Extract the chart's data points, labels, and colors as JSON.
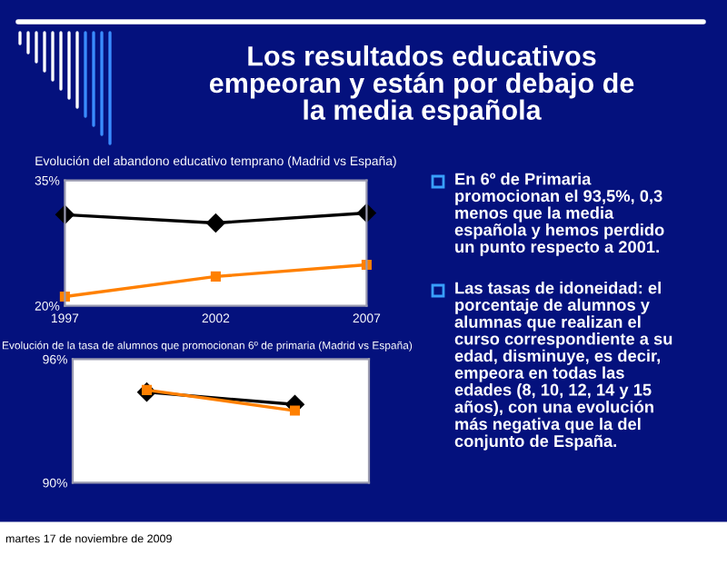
{
  "chart_data": [
    {
      "type": "line",
      "title": "Evolución del abandono educativo temprano (Madrid vs España)",
      "x": [
        1997,
        2002,
        2007
      ],
      "xlim": [
        1997,
        2007
      ],
      "xticks": [
        1997,
        2002,
        2007
      ],
      "ylim": [
        20,
        35
      ],
      "yticks": [
        {
          "value": 35,
          "label": "35%"
        },
        {
          "value": 20,
          "label": "20%"
        }
      ],
      "grid": false,
      "legend": false,
      "series": [
        {
          "color": "#000000",
          "marker": "diamond",
          "values": [
            30.9,
            29.9,
            31.1
          ]
        },
        {
          "color": "#ff8000",
          "marker": "square",
          "values": [
            21.1,
            23.5,
            24.9
          ]
        }
      ],
      "annotations": [
        "Los resultados educativos\nempeoran y están por debajo de\nla media española",
        "En 6º de Primaria\npromocionan el 93,5%, 0,3\nmenos que la media\nespañola y hemos perdido\nun punto respecto a 2001.",
        "Las tasas de idoneidad: el\nporcentaje de alumnos y\nalumnas que realizan el\ncurso correspondiente a su\nedad, disminuye, es decir,\nempeora en todas las\nedades (8, 10, 12, 14 y 15\naños), con una evolución\nmás negativa que la del\nconjunto de España.",
        "martes 17 de noviembre de 2009"
      ]
    },
    {
      "type": "line",
      "title": "Evolución de la tasa de alumnos que promocionan 6º de primaria (Madrid vs España)",
      "categories": [
        null,
        null
      ],
      "ylim": [
        90,
        96
      ],
      "yticks": [
        {
          "value": 96,
          "label": "96%"
        },
        {
          "value": 90,
          "label": "90%"
        }
      ],
      "grid": false,
      "legend": false,
      "tick_labels": "y",
      "series": [
        {
          "color": "#000000",
          "marker": "diamond",
          "values": [
            94.4,
            93.8
          ]
        },
        {
          "color": "#ff8000",
          "marker": "square",
          "values": [
            94.5,
            93.5
          ]
        }
      ]
    }
  ]
}
